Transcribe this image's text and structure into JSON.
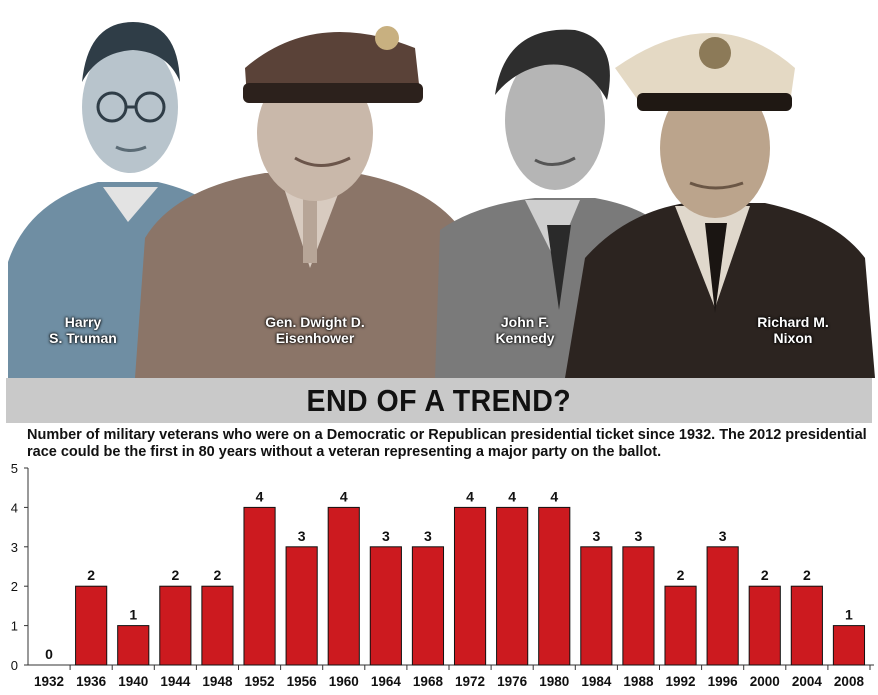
{
  "portraits": [
    {
      "name_line1": "Harry",
      "name_line2": "S. Truman"
    },
    {
      "name_line1": "Gen. Dwight D.",
      "name_line2": "Eisenhower"
    },
    {
      "name_line1": "John F.",
      "name_line2": "Kennedy"
    },
    {
      "name_line1": "Richard M.",
      "name_line2": "Nixon"
    }
  ],
  "colors": {
    "bar": "#cc1a1f",
    "band": "#c9c9c9",
    "text": "#111111"
  },
  "chart_data": {
    "type": "bar",
    "title": "END OF A TREND?",
    "subtitle": "Number of military veterans who were on a Democratic or Republican presidential ticket since 1932. The 2012 presidential race could be the first in 80 years without a veteran representing a major party on the ballot.",
    "categories": [
      "1932",
      "1936",
      "1940",
      "1944",
      "1948",
      "1952",
      "1956",
      "1960",
      "1964",
      "1968",
      "1972",
      "1976",
      "1980",
      "1984",
      "1988",
      "1992",
      "1996",
      "2000",
      "2004",
      "2008"
    ],
    "values": [
      0,
      2,
      1,
      2,
      2,
      4,
      3,
      4,
      3,
      3,
      4,
      4,
      4,
      3,
      3,
      2,
      3,
      2,
      2,
      1
    ],
    "yticks": [
      0,
      1,
      2,
      3,
      4,
      5
    ],
    "ylim": [
      0,
      5
    ],
    "xlabel": "",
    "ylabel": "",
    "grid": false,
    "data_labels": true
  }
}
